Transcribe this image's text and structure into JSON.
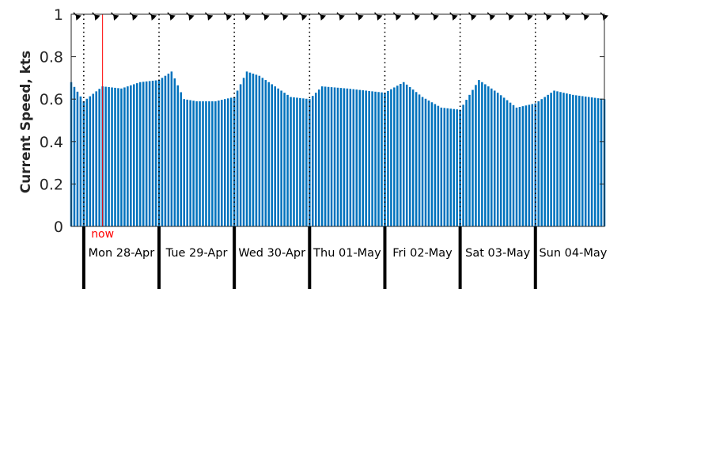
{
  "chart_data": {
    "type": "bar",
    "ylabel": "Current Speed, kts",
    "ylim": [
      0,
      1
    ],
    "yticks": [
      "0",
      "0.2",
      "0.4",
      "0.6",
      "0.8",
      "1"
    ],
    "x_start": "2025-04-27 20:00",
    "x_end": "2025-05-04 22:00",
    "day_boundaries": [
      "2025-04-28 00:00",
      "2025-04-29 00:00",
      "2025-04-30 00:00",
      "2025-05-01 00:00",
      "2025-05-02 00:00",
      "2025-05-03 00:00",
      "2025-05-04 00:00"
    ],
    "day_labels": [
      "Mon 28-Apr",
      "Tue 29-Apr",
      "Wed 30-Apr",
      "Thu 01-May",
      "Fri 02-May",
      "Sat 03-May",
      "Sun 04-May"
    ],
    "now_label": "now",
    "now_time": "2025-04-28 06:00",
    "series": [
      {
        "color": "#0072BD",
        "x": [
          "2025-04-27 20:00",
          "2025-04-28 00:00",
          "2025-04-28 06:00",
          "2025-04-28 12:00",
          "2025-04-28 18:00",
          "2025-04-29 00:00",
          "2025-04-29 04:00",
          "2025-04-29 08:00",
          "2025-04-29 12:00",
          "2025-04-29 18:00",
          "2025-04-30 00:00",
          "2025-04-30 04:00",
          "2025-04-30 08:00",
          "2025-04-30 12:00",
          "2025-04-30 18:00",
          "2025-05-01 00:00",
          "2025-05-01 04:00",
          "2025-05-01 12:00",
          "2025-05-01 18:00",
          "2025-05-02 00:00",
          "2025-05-02 06:00",
          "2025-05-02 12:00",
          "2025-05-02 18:00",
          "2025-05-03 00:00",
          "2025-05-03 06:00",
          "2025-05-03 12:00",
          "2025-05-03 18:00",
          "2025-05-04 00:00",
          "2025-05-04 06:00",
          "2025-05-04 12:00",
          "2025-05-04 22:00"
        ],
        "values": [
          0.68,
          0.59,
          0.66,
          0.65,
          0.68,
          0.69,
          0.73,
          0.6,
          0.59,
          0.59,
          0.61,
          0.73,
          0.71,
          0.67,
          0.61,
          0.6,
          0.66,
          0.65,
          0.64,
          0.63,
          0.68,
          0.61,
          0.56,
          0.55,
          0.69,
          0.63,
          0.56,
          0.58,
          0.64,
          0.62,
          0.6
        ]
      }
    ],
    "arrow_direction": "up-left",
    "grid": false
  }
}
